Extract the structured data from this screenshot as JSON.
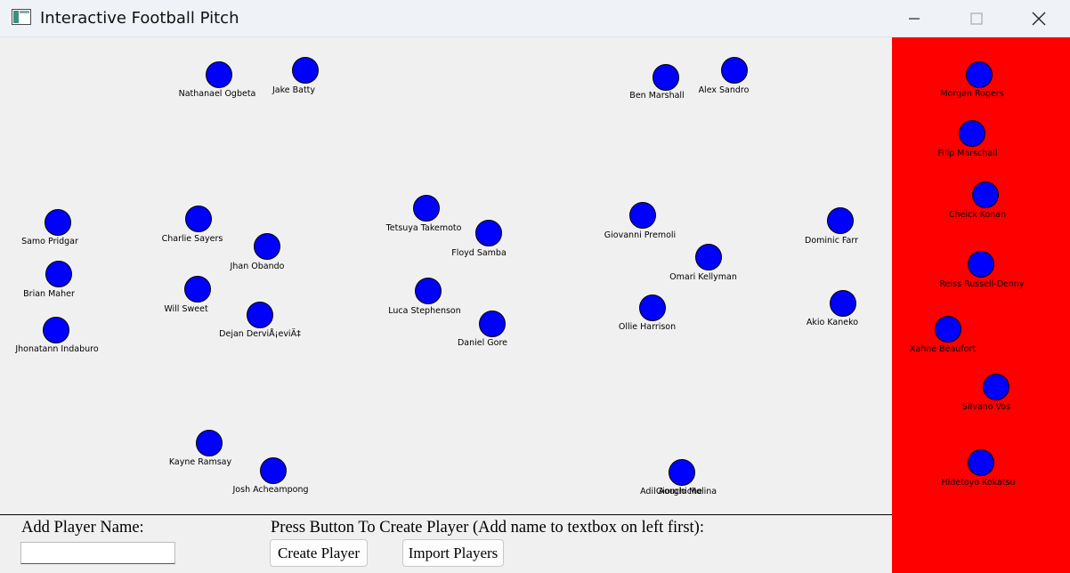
{
  "window": {
    "title": "Interactive Football Pitch",
    "icon": "app-window-icon",
    "controls": [
      "minimize-icon",
      "maximize-icon",
      "close-icon"
    ]
  },
  "colors": {
    "player_dot": "#0000ff",
    "bench_background": "#ff0000",
    "pitch_background": "#f0f0f0"
  },
  "pitch_players": [
    {
      "name": "Nathanael Ogbeta"
    },
    {
      "name": "Jake Batty"
    },
    {
      "name": "Ben Marshall"
    },
    {
      "name": "Alex Sandro"
    },
    {
      "name": "Samo Pridgar"
    },
    {
      "name": "Charlie Sayers"
    },
    {
      "name": "Jhan Obando"
    },
    {
      "name": "Tetsuya Takemoto"
    },
    {
      "name": "Floyd Samba"
    },
    {
      "name": "Giovanni Premoli"
    },
    {
      "name": "Omari Kellyman"
    },
    {
      "name": "Dominic Farr"
    },
    {
      "name": "Brian Maher"
    },
    {
      "name": "Will Sweet"
    },
    {
      "name": "Dejan DerviÅ¡eviÄ‡"
    },
    {
      "name": "Luca Stephenson"
    },
    {
      "name": "Daniel Gore"
    },
    {
      "name": "Ollie Harrison"
    },
    {
      "name": "Akio Kaneko"
    },
    {
      "name": "Jhonatann Indaburo"
    },
    {
      "name": "Kayne Ramsay"
    },
    {
      "name": "Josh Acheampong"
    },
    {
      "name": "Giorgio Molina"
    },
    {
      "name": "Adil Aouchiche"
    }
  ],
  "bench_players": [
    {
      "name": "Morgan Rogers"
    },
    {
      "name": "Filip Marschall"
    },
    {
      "name": "Cheick Konan"
    },
    {
      "name": "Reiss Russell-Denny"
    },
    {
      "name": "Xahne Beaufort"
    },
    {
      "name": "Silvano Vos"
    },
    {
      "name": "Hidetoyo Kokatsu"
    }
  ],
  "controls": {
    "add_player_label": "Add Player Name:",
    "name_input_value": "",
    "create_instruction": "Press Button To Create Player (Add name to textbox on left first):",
    "create_button": "Create Player",
    "import_button": "Import Players"
  }
}
